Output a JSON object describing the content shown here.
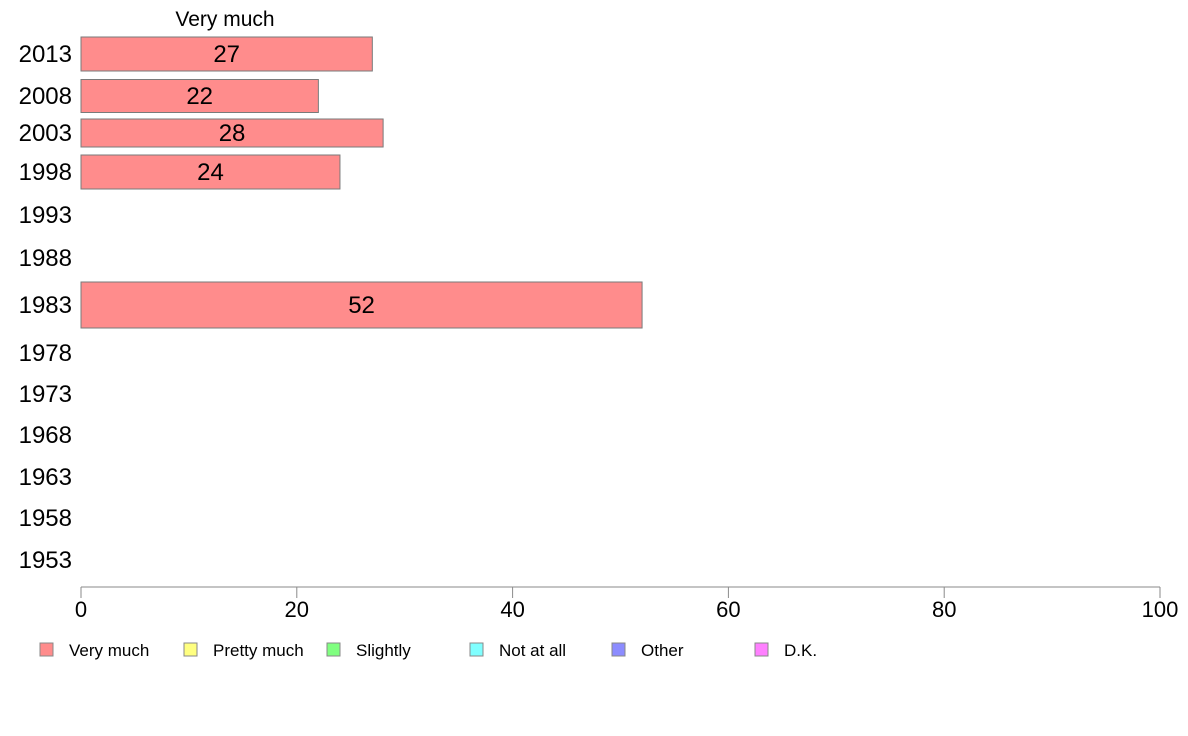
{
  "chart_data": {
    "type": "bar",
    "orientation": "horizontal",
    "header_label": "Very much",
    "categories": [
      "2013",
      "2008",
      "2003",
      "1998",
      "1993",
      "1988",
      "1983",
      "1978",
      "1973",
      "1968",
      "1963",
      "1958",
      "1953"
    ],
    "series": [
      {
        "name": "Very much",
        "color": "#ff8c8c",
        "values": [
          27,
          22,
          28,
          24,
          null,
          null,
          52,
          null,
          null,
          null,
          null,
          null,
          null
        ]
      }
    ],
    "xlim": [
      0,
      100
    ],
    "xticks": [
      0,
      20,
      40,
      60,
      80,
      100
    ],
    "grid": false,
    "legend_position": "bottom",
    "legend": [
      {
        "label": "Very much",
        "color": "#ff8c8c"
      },
      {
        "label": "Pretty much",
        "color": "#ffff80"
      },
      {
        "label": "Slightly",
        "color": "#80ff80"
      },
      {
        "label": "Not at all",
        "color": "#80ffff"
      },
      {
        "label": "Other",
        "color": "#8c8cff"
      },
      {
        "label": "D.K.",
        "color": "#ff80ff"
      }
    ]
  }
}
